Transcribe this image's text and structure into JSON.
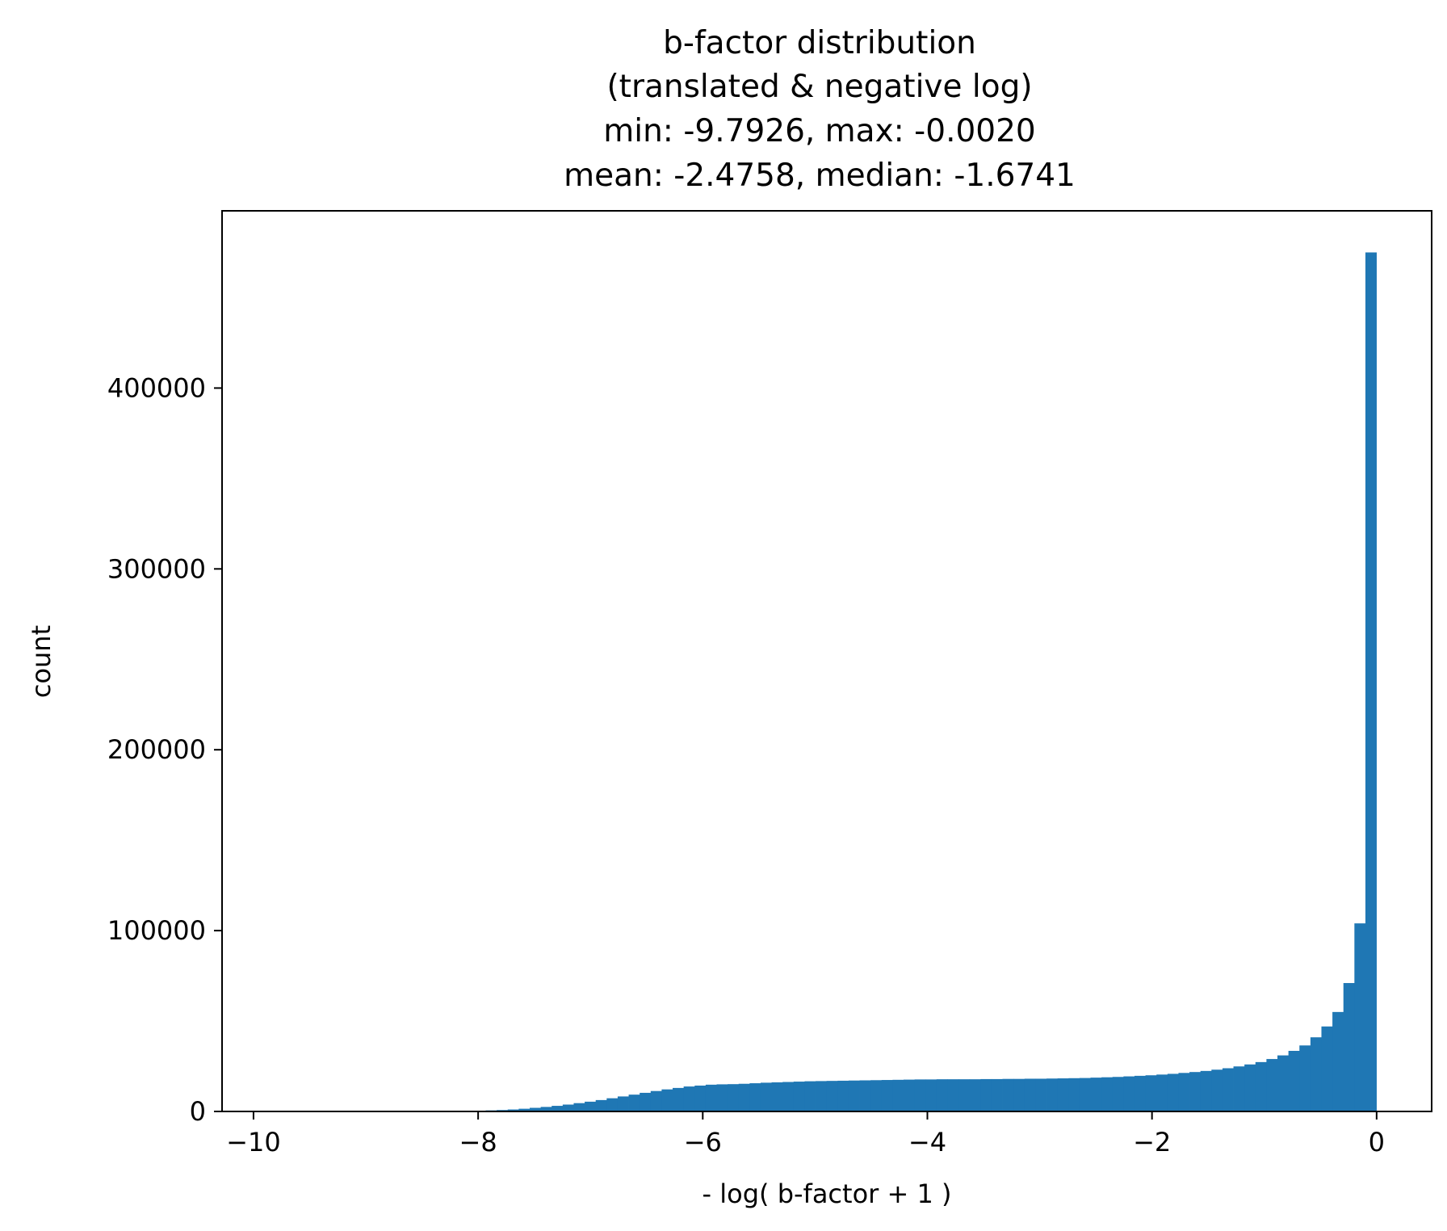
{
  "chart_data": {
    "type": "bar",
    "title_lines": [
      "b-factor distribution",
      "(translated & negative log)",
      "min: -9.7926, max: -0.0020",
      "mean: -2.4758, median: -1.6741"
    ],
    "xlabel": "- log( b-factor + 1 )",
    "ylabel": "count",
    "xlim": [
      -10.28,
      0.49
    ],
    "ylim": [
      0,
      498000
    ],
    "xticks": [
      -10,
      -8,
      -6,
      -4,
      -2,
      0
    ],
    "xtick_labels": [
      "−10",
      "−8",
      "−6",
      "−4",
      "−2",
      "0"
    ],
    "yticks": [
      0,
      100000,
      200000,
      300000,
      400000
    ],
    "ytick_labels": [
      "0",
      "100000",
      "200000",
      "300000",
      "400000"
    ],
    "grid": false,
    "bin_range": [
      -9.7926,
      -0.002
    ],
    "bin_count": 100,
    "counts": [
      0,
      0,
      0,
      0,
      0,
      0,
      0,
      0,
      0,
      0,
      0,
      0,
      0,
      0,
      0,
      0,
      200,
      300,
      400,
      600,
      800,
      1100,
      1500,
      2000,
      2500,
      3100,
      3800,
      4600,
      5400,
      6300,
      7300,
      8300,
      9300,
      10300,
      11300,
      12200,
      13000,
      13800,
      14300,
      14800,
      15000,
      15100,
      15300,
      15600,
      15900,
      16100,
      16300,
      16500,
      16700,
      16800,
      16900,
      17000,
      17100,
      17200,
      17300,
      17400,
      17500,
      17600,
      17700,
      17700,
      17800,
      17800,
      17800,
      17800,
      17900,
      17900,
      18000,
      18000,
      18100,
      18100,
      18200,
      18300,
      18400,
      18500,
      18700,
      18900,
      19100,
      19400,
      19700,
      20000,
      20400,
      20800,
      21300,
      21800,
      22400,
      23100,
      23900,
      24900,
      26000,
      27300,
      29000,
      31000,
      33500,
      36500,
      41000,
      47000,
      55000,
      71000,
      104000,
      475000
    ],
    "series_color": "#1f77b4"
  }
}
